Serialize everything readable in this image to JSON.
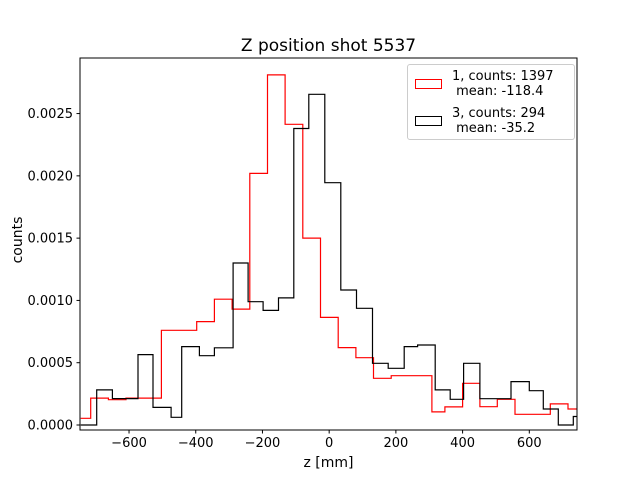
{
  "chart_data": {
    "type": "histogram-step",
    "title": "Z position shot 5537",
    "xlabel": "z [mm]",
    "ylabel": "counts",
    "xlim": [
      -747,
      743
    ],
    "ylim": [
      -4.02e-05,
      0.002946
    ],
    "grid": false,
    "legend_position": "upper right",
    "xticks": [
      {
        "v": -600,
        "label": "−600"
      },
      {
        "v": -400,
        "label": "−400"
      },
      {
        "v": -200,
        "label": "−200"
      },
      {
        "v": 0,
        "label": "0"
      },
      {
        "v": 200,
        "label": "200"
      },
      {
        "v": 400,
        "label": "400"
      },
      {
        "v": 600,
        "label": "600"
      }
    ],
    "yticks": [
      {
        "v": 0.0,
        "label": "0.0000"
      },
      {
        "v": 0.0005,
        "label": "0.0005"
      },
      {
        "v": 0.001,
        "label": "0.0010"
      },
      {
        "v": 0.0015,
        "label": "0.0015"
      },
      {
        "v": 0.002,
        "label": "0.0020"
      },
      {
        "v": 0.0025,
        "label": "0.0025"
      }
    ],
    "series": [
      {
        "id": "1",
        "counts": 1397,
        "mean": -118.4,
        "color": "#ff0000",
        "bin_edges": [
          -745,
          -715,
          -662,
          -609,
          -556,
          -503,
          -450,
          -397,
          -344,
          -291,
          -238,
          -185,
          -132,
          -79,
          -26,
          27,
          80,
          133,
          186,
          308,
          347,
          400,
          452,
          504,
          557,
          610,
          663,
          716,
          743
        ],
        "values": [
          5.4e-05,
          0.000216,
          0.000203,
          0.000216,
          0.000216,
          0.00076,
          0.00076,
          0.00083,
          0.00101,
          0.00093,
          0.00202,
          0.00281,
          0.002414,
          0.0015,
          0.000864,
          0.000621,
          0.00054,
          0.000375,
          0.000396,
          0.000105,
          0.000145,
          0.000335,
          0.000147,
          0.000206,
          8.6e-05,
          8.6e-05,
          0.000169,
          0.000128
        ]
      },
      {
        "id": "3",
        "counts": 294,
        "mean": -35.2,
        "color": "#000000",
        "bin_edges": [
          -745,
          -697,
          -650,
          -610,
          -573,
          -528,
          -474,
          -442,
          -389,
          -344,
          -288,
          -243,
          -198,
          -152,
          -106,
          -61,
          -13,
          35,
          82,
          130,
          177,
          225,
          265,
          318,
          363,
          403,
          452,
          545,
          600,
          642,
          687,
          732,
          743
        ],
        "values": [
          0,
          0.000282,
          0.000212,
          0.000212,
          0.000565,
          0.000141,
          6.2e-05,
          0.000629,
          0.000556,
          0.00062,
          0.0013,
          0.00099,
          0.00092,
          0.00102,
          0.00238,
          0.002655,
          0.001945,
          0.001084,
          0.000937,
          0.000495,
          0.000455,
          0.000629,
          0.000642,
          0.000282,
          0.000206,
          0.000495,
          0.000211,
          0.000348,
          0.000275,
          0.000128,
          0,
          6.8e-05
        ]
      }
    ],
    "legend": {
      "entries": [
        {
          "color": "#ff0000",
          "lines": [
            "1, counts: 1397",
            " mean: -118.4"
          ]
        },
        {
          "color": "#000000",
          "lines": [
            "3, counts: 294",
            " mean: -35.2"
          ]
        }
      ]
    }
  }
}
